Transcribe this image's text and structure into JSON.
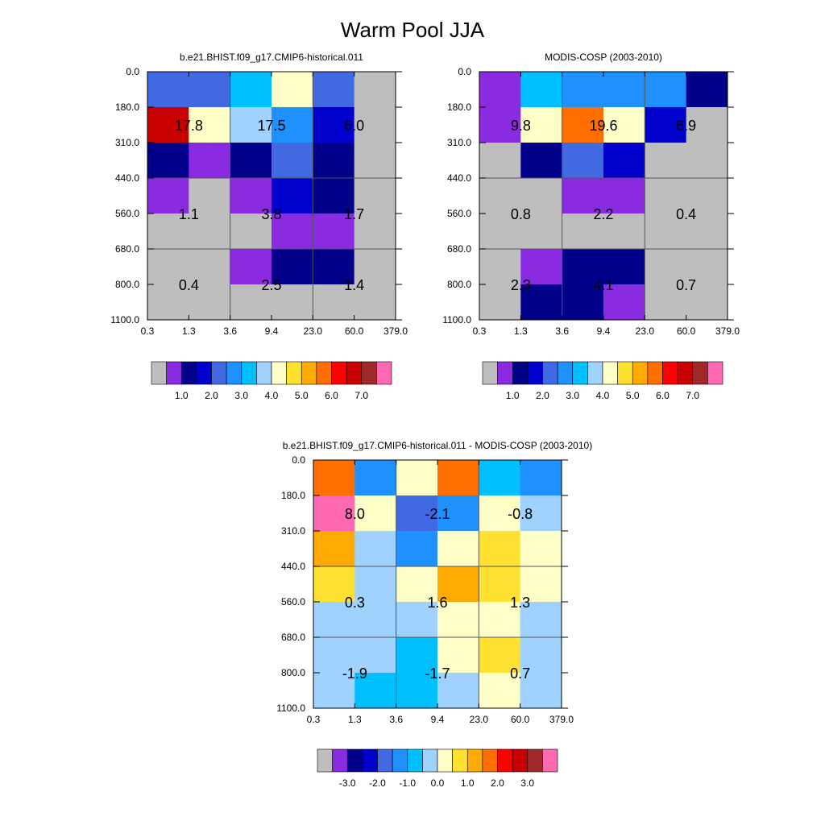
{
  "figure_title": "Warm Pool JJA",
  "chart_data": [
    {
      "type": "heatmap",
      "title": "b.e21.BHIST.f09_g17.CMIP6-historical.011",
      "x_tick_labels": [
        "0.3",
        "1.3",
        "3.6",
        "9.4",
        "23.0",
        "60.0",
        "379.0"
      ],
      "y_tick_labels": [
        "0.0",
        "180.0",
        "310.0",
        "440.0",
        "560.0",
        "680.0",
        "800.0",
        "1100.0"
      ],
      "grid": "3x3 summary cells",
      "summary_values": [
        [
          "17.8",
          "17.5",
          "6.0"
        ],
        [
          "1.1",
          "3.8",
          "1.7"
        ],
        [
          "0.4",
          "2.5",
          "1.4"
        ]
      ],
      "cells": [
        [
          "royalblue",
          "royalblue",
          "deepskyblue",
          "lightyellow",
          "royalblue",
          "gray"
        ],
        [
          "darkred",
          "lightyellow",
          "lightblue",
          "dodgerblue",
          "blue",
          "gray"
        ],
        [
          "navy",
          "blueviolet",
          "navy",
          "royalblue",
          "navy",
          "gray"
        ],
        [
          "blueviolet",
          "gray",
          "blueviolet",
          "blue",
          "navy",
          "gray"
        ],
        [
          "gray",
          "gray",
          "gray",
          "blueviolet",
          "blueviolet",
          "gray"
        ],
        [
          "gray",
          "gray",
          "blueviolet",
          "navy",
          "navy",
          "gray"
        ],
        [
          "gray",
          "gray",
          "gray",
          "gray",
          "gray",
          "gray"
        ]
      ],
      "colorbar": {
        "colors": [
          "#bebebe",
          "#8a2be2",
          "#00008b",
          "#0000cd",
          "#4169e1",
          "#1e90ff",
          "#00bfff",
          "#a0d2ff",
          "#ffffc8",
          "#ffe132",
          "#ffaa00",
          "#ff6e00",
          "#ff0000",
          "#c80000",
          "#a02828",
          "#ff69b4"
        ],
        "labels": [
          "1.0",
          "2.0",
          "3.0",
          "4.0",
          "5.0",
          "6.0",
          "7.0"
        ]
      }
    },
    {
      "type": "heatmap",
      "title": "MODIS-COSP (2003-2010)",
      "x_tick_labels": [
        "0.3",
        "1.3",
        "3.6",
        "9.4",
        "23.0",
        "60.0",
        "379.0"
      ],
      "y_tick_labels": [
        "0.0",
        "180.0",
        "310.0",
        "440.0",
        "560.0",
        "680.0",
        "800.0",
        "1100.0"
      ],
      "grid": "3x3 summary cells",
      "summary_values": [
        [
          "9.8",
          "19.6",
          "6.9"
        ],
        [
          "0.8",
          "2.2",
          "0.4"
        ],
        [
          "2.3",
          "4.1",
          "0.7"
        ]
      ],
      "cells": [
        [
          "blueviolet",
          "deepskyblue",
          "dodgerblue",
          "dodgerblue",
          "dodgerblue",
          "navy"
        ],
        [
          "blueviolet",
          "lightyellow",
          "darkorange",
          "lightyellow",
          "blue",
          "gray"
        ],
        [
          "gray",
          "navy",
          "royalblue",
          "blue",
          "gray",
          "gray"
        ],
        [
          "gray",
          "gray",
          "blueviolet",
          "blueviolet",
          "gray",
          "gray"
        ],
        [
          "gray",
          "gray",
          "gray",
          "gray",
          "gray",
          "gray"
        ],
        [
          "gray",
          "blueviolet",
          "navy",
          "navy",
          "gray",
          "gray"
        ],
        [
          "gray",
          "navy",
          "navy",
          "blueviolet",
          "gray",
          "gray"
        ]
      ],
      "colorbar": {
        "colors": [
          "#bebebe",
          "#8a2be2",
          "#00008b",
          "#0000cd",
          "#4169e1",
          "#1e90ff",
          "#00bfff",
          "#a0d2ff",
          "#ffffc8",
          "#ffe132",
          "#ffaa00",
          "#ff6e00",
          "#ff0000",
          "#c80000",
          "#a02828",
          "#ff69b4"
        ],
        "labels": [
          "1.0",
          "2.0",
          "3.0",
          "4.0",
          "5.0",
          "6.0",
          "7.0"
        ]
      }
    },
    {
      "type": "heatmap",
      "title": "b.e21.BHIST.f09_g17.CMIP6-historical.011 - MODIS-COSP (2003-2010)",
      "x_tick_labels": [
        "0.3",
        "1.3",
        "3.6",
        "9.4",
        "23.0",
        "60.0",
        "379.0"
      ],
      "y_tick_labels": [
        "0.0",
        "180.0",
        "310.0",
        "440.0",
        "560.0",
        "680.0",
        "800.0",
        "1100.0"
      ],
      "grid": "3x3 summary cells",
      "summary_values": [
        [
          "8.0",
          "-2.1",
          "-0.8"
        ],
        [
          "0.3",
          "1.6",
          "1.3"
        ],
        [
          "-1.9",
          "-1.7",
          "0.7"
        ]
      ],
      "cells": [
        [
          "darkorange",
          "dodgerblue",
          "lightyellow",
          "darkorange",
          "deepskyblue",
          "dodgerblue"
        ],
        [
          "hotpink",
          "lightyellow",
          "royalblue",
          "dodgerblue",
          "lightyellow",
          "lightblue"
        ],
        [
          "orange",
          "lightblue",
          "dodgerblue",
          "lightyellow",
          "gold",
          "lightyellow"
        ],
        [
          "gold",
          "lightblue",
          "lightyellow",
          "orange",
          "gold",
          "lightyellow"
        ],
        [
          "lightblue",
          "lightblue",
          "lightblue",
          "lightyellow",
          "lightyellow",
          "lightblue"
        ],
        [
          "lightblue",
          "lightblue",
          "deepskyblue",
          "lightyellow",
          "gold",
          "lightblue"
        ],
        [
          "lightblue",
          "deepskyblue",
          "deepskyblue",
          "lightblue",
          "lightyellow",
          "lightblue"
        ]
      ],
      "colorbar": {
        "colors": [
          "#bebebe",
          "#8a2be2",
          "#00008b",
          "#0000cd",
          "#4169e1",
          "#1e90ff",
          "#00bfff",
          "#a0d2ff",
          "#ffffc8",
          "#ffe132",
          "#ffaa00",
          "#ff6e00",
          "#ff0000",
          "#c80000",
          "#a02828",
          "#ff69b4"
        ],
        "labels": [
          "-3.0",
          "-2.0",
          "-1.0",
          "0.0",
          "1.0",
          "2.0",
          "3.0"
        ]
      }
    }
  ],
  "palette": {
    "gray": "#bebebe",
    "blueviolet": "#8a2be2",
    "navy": "#00008b",
    "blue": "#0000cd",
    "royalblue": "#4169e1",
    "dodgerblue": "#1e90ff",
    "deepskyblue": "#00bfff",
    "lightblue": "#a0d2ff",
    "lightyellow": "#ffffc8",
    "gold": "#ffe132",
    "orange": "#ffaa00",
    "darkorange": "#ff6e00",
    "red": "#ff0000",
    "darkred": "#c80000",
    "brown": "#a02828",
    "hotpink": "#ff69b4"
  }
}
